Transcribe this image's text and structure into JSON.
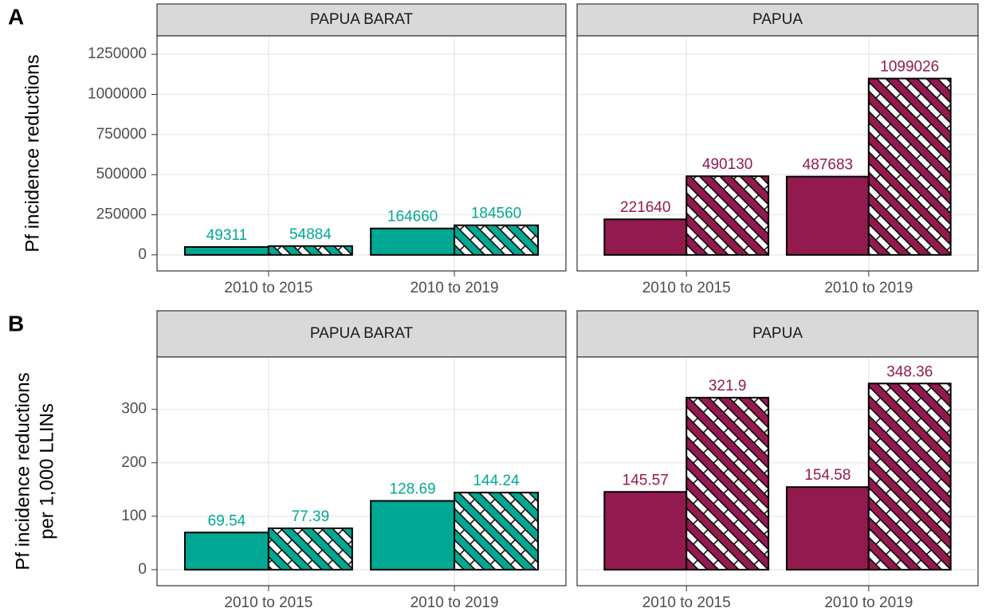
{
  "chart_data": [
    {
      "type": "bar",
      "panel_label": "A",
      "ylabel": [
        "Pf incidence reductions"
      ],
      "ylim": [
        -100000,
        1365000
      ],
      "yticks": [
        0,
        250000,
        500000,
        750000,
        1000000,
        1250000
      ],
      "grid": true,
      "facets": [
        {
          "title": "PAPUA BARAT",
          "categories": [
            "2010 to 2015",
            "2010 to 2019"
          ],
          "series": [
            {
              "color": "#00a893",
              "pattern": "solid",
              "values": [
                49311,
                164660
              ]
            },
            {
              "color": "#00a893",
              "pattern": "hatch",
              "values": [
                54884,
                184560
              ]
            }
          ]
        },
        {
          "title": "PAPUA",
          "categories": [
            "2010 to 2015",
            "2010 to 2019"
          ],
          "series": [
            {
              "color": "#931a4f",
              "pattern": "solid",
              "values": [
                221640,
                487683
              ]
            },
            {
              "color": "#931a4f",
              "pattern": "hatch",
              "values": [
                490130,
                1099026
              ]
            }
          ]
        }
      ]
    },
    {
      "type": "bar",
      "panel_label": "B",
      "ylabel": [
        "Pf incidence reductions",
        "per 1,000 LLINs"
      ],
      "ylim": [
        -30,
        398
      ],
      "yticks": [
        0,
        100,
        200,
        300
      ],
      "grid": true,
      "facets": [
        {
          "title": "PAPUA BARAT",
          "categories": [
            "2010 to 2015",
            "2010 to 2019"
          ],
          "series": [
            {
              "color": "#00a893",
              "pattern": "solid",
              "values": [
                69.54,
                128.69
              ]
            },
            {
              "color": "#00a893",
              "pattern": "hatch",
              "values": [
                77.39,
                144.24
              ]
            }
          ]
        },
        {
          "title": "PAPUA",
          "categories": [
            "2010 to 2015",
            "2010 to 2019"
          ],
          "series": [
            {
              "color": "#931a4f",
              "pattern": "solid",
              "values": [
                145.57,
                154.58
              ]
            },
            {
              "color": "#931a4f",
              "pattern": "hatch",
              "values": [
                321.9,
                348.36
              ]
            }
          ]
        }
      ]
    }
  ]
}
